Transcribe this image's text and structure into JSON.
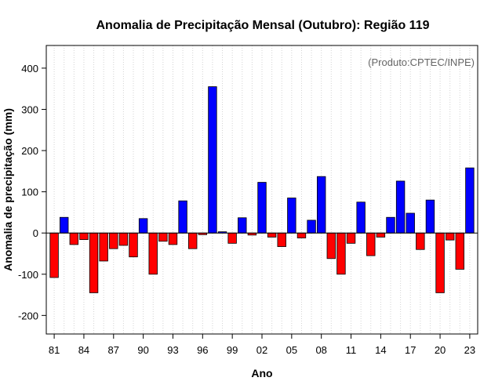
{
  "chart_data": {
    "type": "bar",
    "title": "Anomalia de Precipitação Mensal (Outubro): Região 119",
    "xlabel": "Ano",
    "ylabel": "Anomalia de precipitação (mm)",
    "annotation": "(Produto:CPTEC/INPE)",
    "ylim": [
      -245,
      455
    ],
    "yticks": [
      -200,
      -100,
      0,
      100,
      200,
      300,
      400
    ],
    "grid": "vertical dotted",
    "colors": {
      "positive": "#0000ff",
      "negative": "#ff0000",
      "border": "#000000"
    },
    "xtick_labels": [
      {
        "index": 0,
        "label": "81"
      },
      {
        "index": 3,
        "label": "84"
      },
      {
        "index": 6,
        "label": "87"
      },
      {
        "index": 9,
        "label": "90"
      },
      {
        "index": 12,
        "label": "93"
      },
      {
        "index": 15,
        "label": "96"
      },
      {
        "index": 18,
        "label": "99"
      },
      {
        "index": 21,
        "label": "02"
      },
      {
        "index": 24,
        "label": "05"
      },
      {
        "index": 27,
        "label": "08"
      },
      {
        "index": 30,
        "label": "11"
      },
      {
        "index": 33,
        "label": "14"
      },
      {
        "index": 36,
        "label": "17"
      },
      {
        "index": 39,
        "label": "20"
      },
      {
        "index": 42,
        "label": "23"
      }
    ],
    "categories": [
      "1981",
      "1982",
      "1983",
      "1984",
      "1985",
      "1986",
      "1987",
      "1988",
      "1989",
      "1990",
      "1991",
      "1992",
      "1993",
      "1994",
      "1995",
      "1996",
      "1997",
      "1998",
      "1999",
      "2000",
      "2001",
      "2002",
      "2003",
      "2004",
      "2005",
      "2006",
      "2007",
      "2008",
      "2009",
      "2010",
      "2011",
      "2012",
      "2013",
      "2014",
      "2015",
      "2016",
      "2017",
      "2018",
      "2019",
      "2020",
      "2021",
      "2022",
      "2023"
    ],
    "values": [
      -108,
      38,
      -28,
      -16,
      -145,
      -68,
      -38,
      -30,
      -58,
      35,
      -100,
      -20,
      -28,
      78,
      -38,
      -4,
      355,
      3,
      -25,
      37,
      -5,
      123,
      -10,
      -33,
      85,
      -12,
      31,
      137,
      -62,
      -100,
      -25,
      75,
      -55,
      -10,
      38,
      126,
      48,
      -40,
      80,
      -145,
      -17,
      -88,
      158
    ]
  }
}
